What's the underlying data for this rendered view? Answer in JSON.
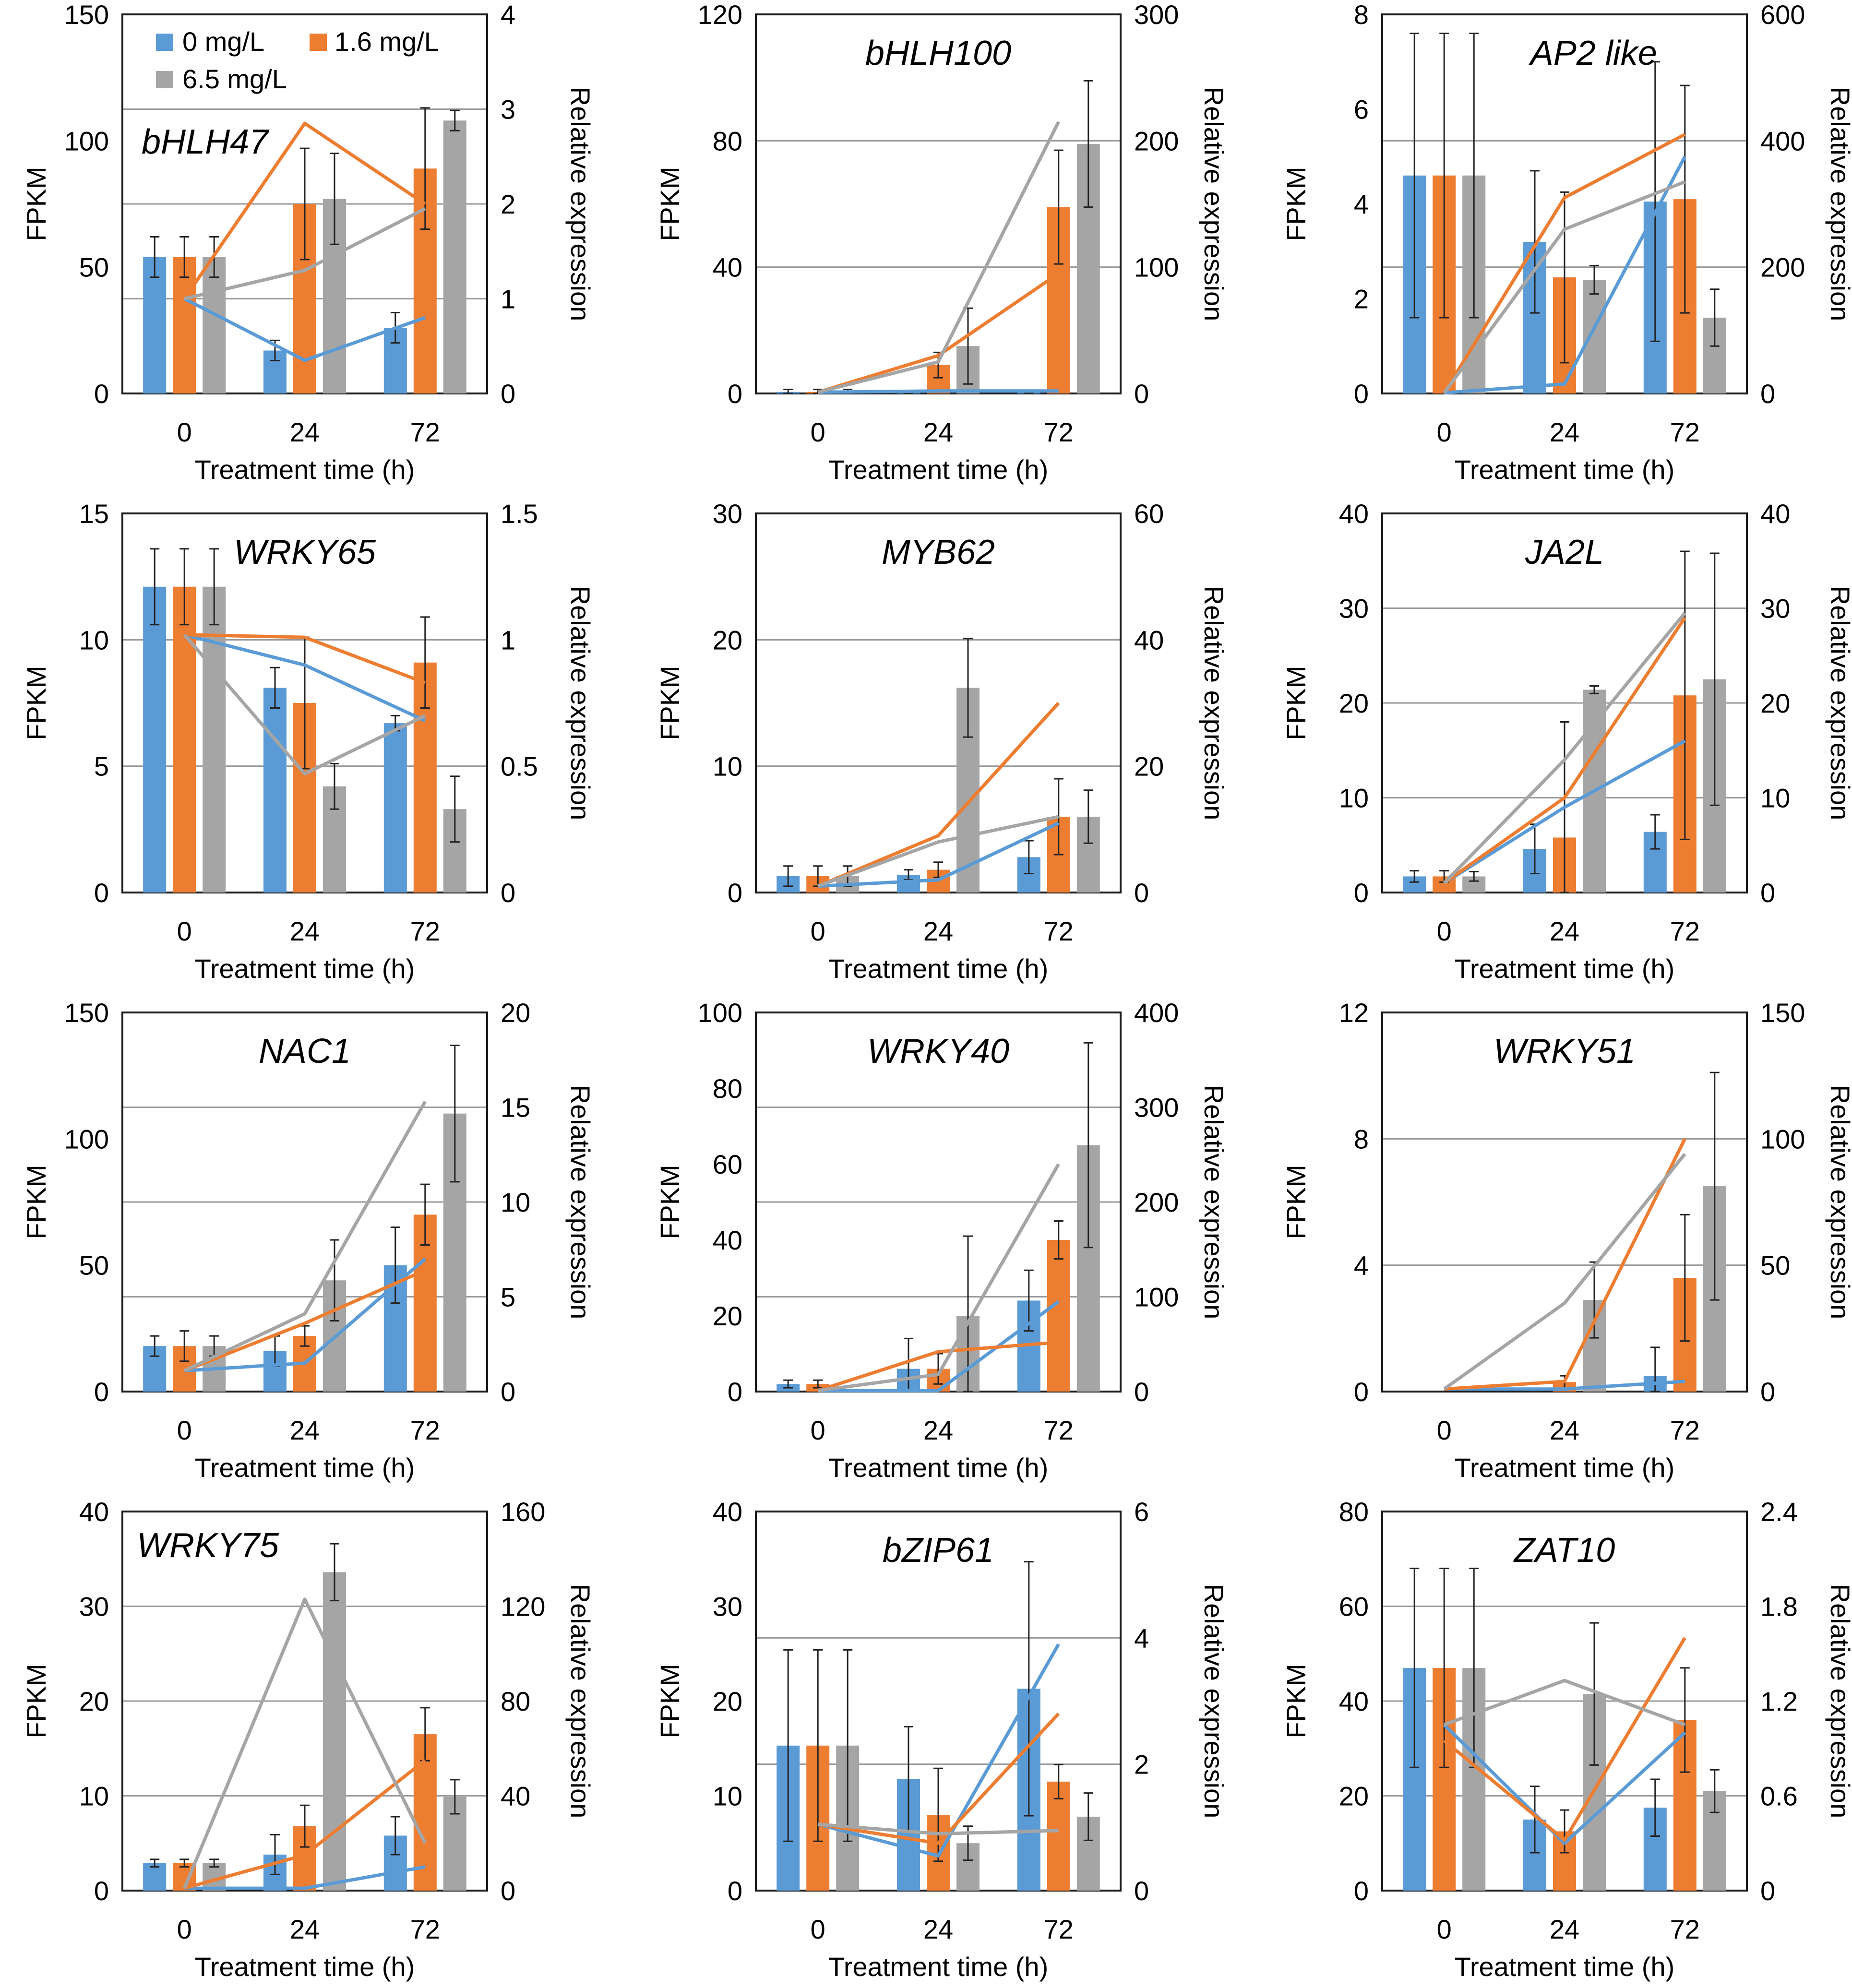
{
  "colors": {
    "blue": "#5b9bd5",
    "orange": "#ed7d31",
    "gray": "#a5a5a5",
    "grid": "#9a9a9a",
    "error_bar": "#222222"
  },
  "legend": {
    "entries": [
      "0 mg/L",
      "1.6 mg/L",
      "6.5 mg/L"
    ]
  },
  "chart_data": [
    {
      "type": "bar+line",
      "title": "bHLH47",
      "categories": [
        "0",
        "24",
        "72"
      ],
      "xlabel": "Treatment time (h)",
      "ylabel": "FPKM",
      "y2label": "Relative expression",
      "ylim": [
        0,
        150
      ],
      "yticks": [
        "0",
        "50",
        "100",
        "150"
      ],
      "y2lim": [
        0,
        4
      ],
      "y2ticks": [
        "0",
        "1",
        "2",
        "3",
        "4"
      ],
      "bar_series": [
        {
          "name": "0 mg/L",
          "values": [
            54,
            17,
            26
          ],
          "errors": [
            8,
            4,
            6
          ]
        },
        {
          "name": "1.6 mg/L",
          "values": [
            54,
            75,
            89
          ],
          "errors": [
            8,
            22,
            24
          ]
        },
        {
          "name": "6.5 mg/L",
          "values": [
            54,
            77,
            108
          ],
          "errors": [
            8,
            18,
            4
          ]
        }
      ],
      "line_series": [
        {
          "name": "0 mg/L",
          "values": [
            1.0,
            0.35,
            0.8
          ]
        },
        {
          "name": "1.6 mg/L",
          "values": [
            1.0,
            2.85,
            2.0
          ]
        },
        {
          "name": "6.5 mg/L",
          "values": [
            1.0,
            1.3,
            1.95
          ]
        }
      ]
    },
    {
      "type": "bar+line",
      "title": "bHLH100",
      "categories": [
        "0",
        "24",
        "72"
      ],
      "xlabel": "Treatment time (h)",
      "ylabel": "FPKM",
      "y2label": "Relative expression",
      "ylim": [
        0,
        120
      ],
      "yticks": [
        "0",
        "40",
        "80",
        "120"
      ],
      "y2lim": [
        0,
        300
      ],
      "y2ticks": [
        "0",
        "100",
        "200",
        "300"
      ],
      "bar_series": [
        {
          "name": "0 mg/L",
          "values": [
            0.5,
            0.3,
            0.3
          ],
          "errors": [
            0.8,
            0.3,
            0.3
          ]
        },
        {
          "name": "1.6 mg/L",
          "values": [
            0.5,
            9,
            59
          ],
          "errors": [
            0.8,
            4,
            18
          ]
        },
        {
          "name": "6.5 mg/L",
          "values": [
            0.5,
            15,
            79
          ],
          "errors": [
            0.8,
            12,
            20
          ]
        }
      ],
      "line_series": [
        {
          "name": "0 mg/L",
          "values": [
            1,
            2,
            2
          ]
        },
        {
          "name": "1.6 mg/L",
          "values": [
            1,
            30,
            95
          ]
        },
        {
          "name": "6.5 mg/L",
          "values": [
            1,
            25,
            215
          ]
        }
      ]
    },
    {
      "type": "bar+line",
      "title": "AP2 like",
      "categories": [
        "0",
        "24",
        "72"
      ],
      "xlabel": "Treatment time (h)",
      "ylabel": "FPKM",
      "y2label": "Relative expression",
      "ylim": [
        0,
        8
      ],
      "yticks": [
        "0",
        "2",
        "4",
        "6",
        "8"
      ],
      "y2lim": [
        0,
        600
      ],
      "y2ticks": [
        "0",
        "200",
        "400",
        "600"
      ],
      "bar_series": [
        {
          "name": "0 mg/L",
          "values": [
            4.6,
            3.2,
            4.05
          ],
          "errors": [
            3.0,
            1.5,
            2.95
          ]
        },
        {
          "name": "1.6 mg/L",
          "values": [
            4.6,
            2.45,
            4.1
          ],
          "errors": [
            3.0,
            1.8,
            2.4
          ]
        },
        {
          "name": "6.5 mg/L",
          "values": [
            4.6,
            2.4,
            1.6
          ],
          "errors": [
            3.0,
            0.3,
            0.6
          ]
        }
      ],
      "line_series": [
        {
          "name": "0 mg/L",
          "values": [
            1,
            15,
            375
          ]
        },
        {
          "name": "1.6 mg/L",
          "values": [
            1,
            310,
            410
          ]
        },
        {
          "name": "6.5 mg/L",
          "values": [
            1,
            260,
            335
          ]
        }
      ]
    },
    {
      "type": "bar+line",
      "title": "WRKY65",
      "categories": [
        "0",
        "24",
        "72"
      ],
      "xlabel": "Treatment time (h)",
      "ylabel": "FPKM",
      "y2label": "Relative expression",
      "ylim": [
        0,
        15
      ],
      "yticks": [
        "0",
        "5",
        "10",
        "15"
      ],
      "y2lim": [
        0,
        1.5
      ],
      "y2ticks": [
        "0",
        "0.5",
        "1",
        "1.5"
      ],
      "bar_series": [
        {
          "name": "0 mg/L",
          "values": [
            12.1,
            8.1,
            6.7
          ],
          "errors": [
            1.5,
            0.8,
            0.3
          ]
        },
        {
          "name": "1.6 mg/L",
          "values": [
            12.1,
            7.5,
            9.1
          ],
          "errors": [
            1.5,
            2.6,
            1.8
          ]
        },
        {
          "name": "6.5 mg/L",
          "values": [
            12.1,
            4.2,
            3.3
          ],
          "errors": [
            1.5,
            0.9,
            1.3
          ]
        }
      ],
      "line_series": [
        {
          "name": "0 mg/L",
          "values": [
            1.02,
            0.9,
            0.68
          ]
        },
        {
          "name": "1.6 mg/L",
          "values": [
            1.02,
            1.01,
            0.83
          ]
        },
        {
          "name": "6.5 mg/L",
          "values": [
            1.02,
            0.47,
            0.7
          ]
        }
      ]
    },
    {
      "type": "bar+line",
      "title": "MYB62",
      "categories": [
        "0",
        "24",
        "72"
      ],
      "xlabel": "Treatment time (h)",
      "ylabel": "FPKM",
      "y2label": "Relative expression",
      "ylim": [
        0,
        30
      ],
      "yticks": [
        "0",
        "10",
        "20",
        "30"
      ],
      "y2lim": [
        0,
        60
      ],
      "y2ticks": [
        "0",
        "20",
        "40",
        "60"
      ],
      "bar_series": [
        {
          "name": "0 mg/L",
          "values": [
            1.3,
            1.4,
            2.8
          ],
          "errors": [
            0.8,
            0.4,
            1.3
          ]
        },
        {
          "name": "1.6 mg/L",
          "values": [
            1.3,
            1.8,
            6.0
          ],
          "errors": [
            0.8,
            0.6,
            3.0
          ]
        },
        {
          "name": "6.5 mg/L",
          "values": [
            1.3,
            16.2,
            6.0
          ],
          "errors": [
            0.8,
            3.9,
            2.1
          ]
        }
      ],
      "line_series": [
        {
          "name": "0 mg/L",
          "values": [
            1,
            2,
            11
          ]
        },
        {
          "name": "1.6 mg/L",
          "values": [
            1,
            9,
            30
          ]
        },
        {
          "name": "6.5 mg/L",
          "values": [
            1,
            8,
            12
          ]
        }
      ]
    },
    {
      "type": "bar+line",
      "title": "JA2L",
      "categories": [
        "0",
        "24",
        "72"
      ],
      "xlabel": "Treatment time (h)",
      "ylabel": "FPKM",
      "y2label": "Relative expression",
      "ylim": [
        0,
        40
      ],
      "yticks": [
        "0",
        "10",
        "20",
        "30",
        "40"
      ],
      "y2lim": [
        0,
        40
      ],
      "y2ticks": [
        "0",
        "10",
        "20",
        "30",
        "40"
      ],
      "bar_series": [
        {
          "name": "0 mg/L",
          "values": [
            1.7,
            4.6,
            6.4
          ],
          "errors": [
            0.6,
            2.6,
            1.8
          ]
        },
        {
          "name": "1.6 mg/L",
          "values": [
            1.7,
            5.8,
            20.8
          ],
          "errors": [
            0.6,
            12.2,
            15.2
          ]
        },
        {
          "name": "6.5 mg/L",
          "values": [
            1.7,
            21.4,
            22.5
          ],
          "errors": [
            0.5,
            0.4,
            13.3
          ]
        }
      ],
      "line_series": [
        {
          "name": "0 mg/L",
          "values": [
            1,
            9,
            16
          ]
        },
        {
          "name": "1.6 mg/L",
          "values": [
            1,
            10,
            29
          ]
        },
        {
          "name": "6.5 mg/L",
          "values": [
            1,
            14,
            29.5
          ]
        }
      ]
    },
    {
      "type": "bar+line",
      "title": "NAC1",
      "categories": [
        "0",
        "24",
        "72"
      ],
      "xlabel": "Treatment time (h)",
      "ylabel": "FPKM",
      "y2label": "Relative expression",
      "ylim": [
        0,
        150
      ],
      "yticks": [
        "0",
        "50",
        "100",
        "150"
      ],
      "y2lim": [
        0,
        20
      ],
      "y2ticks": [
        "0",
        "5",
        "10",
        "15",
        "20"
      ],
      "bar_series": [
        {
          "name": "0 mg/L",
          "values": [
            18,
            16,
            50
          ],
          "errors": [
            4,
            6,
            15
          ]
        },
        {
          "name": "1.6 mg/L",
          "values": [
            18,
            22,
            70
          ],
          "errors": [
            6,
            4,
            12
          ]
        },
        {
          "name": "6.5 mg/L",
          "values": [
            18,
            44,
            110
          ],
          "errors": [
            4,
            16,
            27
          ]
        }
      ],
      "line_series": [
        {
          "name": "0 mg/L",
          "values": [
            1.1,
            1.5,
            7.0
          ]
        },
        {
          "name": "1.6 mg/L",
          "values": [
            1.1,
            3.6,
            6.4
          ]
        },
        {
          "name": "6.5 mg/L",
          "values": [
            1.1,
            4.1,
            15.3
          ]
        }
      ]
    },
    {
      "type": "bar+line",
      "title": "WRKY40",
      "categories": [
        "0",
        "24",
        "72"
      ],
      "xlabel": "Treatment time (h)",
      "ylabel": "FPKM",
      "y2label": "Relative expression",
      "ylim": [
        0,
        100
      ],
      "yticks": [
        "0",
        "20",
        "40",
        "60",
        "80",
        "100"
      ],
      "y2lim": [
        0,
        400
      ],
      "y2ticks": [
        "0",
        "100",
        "200",
        "300",
        "400"
      ],
      "bar_series": [
        {
          "name": "0 mg/L",
          "values": [
            2,
            6,
            24
          ],
          "errors": [
            1,
            8,
            8
          ]
        },
        {
          "name": "1.6 mg/L",
          "values": [
            2,
            6,
            40
          ],
          "errors": [
            1,
            4,
            5
          ]
        },
        {
          "name": "6.5 mg/L",
          "values": [
            0,
            20,
            65
          ],
          "errors": [
            0,
            21,
            27
          ]
        }
      ],
      "line_series": [
        {
          "name": "0 mg/L",
          "values": [
            1,
            1,
            95
          ]
        },
        {
          "name": "1.6 mg/L",
          "values": [
            1,
            42,
            52
          ]
        },
        {
          "name": "6.5 mg/L",
          "values": [
            1,
            18,
            240
          ]
        }
      ]
    },
    {
      "type": "bar+line",
      "title": "WRKY51",
      "categories": [
        "0",
        "24",
        "72"
      ],
      "xlabel": "Treatment time (h)",
      "ylabel": "FPKM",
      "y2label": "Relative expression",
      "ylim": [
        0,
        12
      ],
      "yticks": [
        "0",
        "4",
        "8",
        "12"
      ],
      "y2lim": [
        0,
        150
      ],
      "y2ticks": [
        "0",
        "50",
        "100",
        "150"
      ],
      "bar_series": [
        {
          "name": "0 mg/L",
          "values": [
            0,
            0,
            0.5
          ],
          "errors": [
            0,
            0.1,
            0.9
          ]
        },
        {
          "name": "1.6 mg/L",
          "values": [
            0,
            0.3,
            3.6
          ],
          "errors": [
            0,
            0.2,
            2.0
          ]
        },
        {
          "name": "6.5 mg/L",
          "values": [
            0,
            2.9,
            6.5
          ],
          "errors": [
            0,
            1.2,
            3.6
          ]
        }
      ],
      "line_series": [
        {
          "name": "0 mg/L",
          "values": [
            1,
            1,
            4
          ]
        },
        {
          "name": "1.6 mg/L",
          "values": [
            1,
            4,
            100
          ]
        },
        {
          "name": "6.5 mg/L",
          "values": [
            1,
            35,
            94
          ]
        }
      ]
    },
    {
      "type": "bar+line",
      "title": "WRKY75",
      "categories": [
        "0",
        "24",
        "72"
      ],
      "xlabel": "Treatment time (h)",
      "ylabel": "FPKM",
      "y2label": "Relative expression",
      "ylim": [
        0,
        40
      ],
      "yticks": [
        "0",
        "10",
        "20",
        "30",
        "40"
      ],
      "y2lim": [
        0,
        160
      ],
      "y2ticks": [
        "0",
        "40",
        "80",
        "120",
        "160"
      ],
      "bar_series": [
        {
          "name": "0 mg/L",
          "values": [
            2.9,
            3.8,
            5.8
          ],
          "errors": [
            0.4,
            2.1,
            2.0
          ]
        },
        {
          "name": "1.6 mg/L",
          "values": [
            2.9,
            6.8,
            16.5
          ],
          "errors": [
            0.4,
            2.2,
            2.8
          ]
        },
        {
          "name": "6.5 mg/L",
          "values": [
            2.9,
            33.6,
            9.9
          ],
          "errors": [
            0.4,
            3.0,
            1.8
          ]
        }
      ],
      "line_series": [
        {
          "name": "0 mg/L",
          "values": [
            1,
            1,
            10
          ]
        },
        {
          "name": "1.6 mg/L",
          "values": [
            1,
            15,
            55
          ]
        },
        {
          "name": "6.5 mg/L",
          "values": [
            1,
            123,
            20
          ]
        }
      ]
    },
    {
      "type": "bar+line",
      "title": "bZIP61",
      "categories": [
        "0",
        "24",
        "72"
      ],
      "xlabel": "Treatment time (h)",
      "ylabel": "FPKM",
      "y2label": "Relative expression",
      "ylim": [
        0,
        40
      ],
      "yticks": [
        "0",
        "10",
        "20",
        "30",
        "40"
      ],
      "y2lim": [
        0,
        6
      ],
      "y2ticks": [
        "0",
        "2",
        "4",
        "6"
      ],
      "bar_series": [
        {
          "name": "0 mg/L",
          "values": [
            15.3,
            11.8,
            21.3
          ],
          "errors": [
            10.1,
            5.5,
            13.4
          ]
        },
        {
          "name": "1.6 mg/L",
          "values": [
            15.3,
            8.0,
            11.5
          ],
          "errors": [
            10.1,
            4.9,
            1.8
          ]
        },
        {
          "name": "6.5 mg/L",
          "values": [
            15.3,
            5.0,
            7.8
          ],
          "errors": [
            10.1,
            1.8,
            2.5
          ]
        }
      ],
      "line_series": [
        {
          "name": "0 mg/L",
          "values": [
            1.05,
            0.55,
            3.9
          ]
        },
        {
          "name": "1.6 mg/L",
          "values": [
            1.05,
            0.75,
            2.8
          ]
        },
        {
          "name": "6.5 mg/L",
          "values": [
            1.05,
            0.9,
            0.95
          ]
        }
      ]
    },
    {
      "type": "bar+line",
      "title": "ZAT10",
      "categories": [
        "0",
        "24",
        "72"
      ],
      "xlabel": "Treatment time (h)",
      "ylabel": "FPKM",
      "y2label": "Relative expression",
      "ylim": [
        0,
        80
      ],
      "yticks": [
        "0",
        "20",
        "40",
        "60",
        "80"
      ],
      "y2lim": [
        0,
        2.4
      ],
      "y2ticks": [
        "0",
        "0.6",
        "1.2",
        "1.8",
        "2.4"
      ],
      "bar_series": [
        {
          "name": "0 mg/L",
          "values": [
            47,
            15,
            17.5
          ],
          "errors": [
            21,
            7,
            6
          ]
        },
        {
          "name": "1.6 mg/L",
          "values": [
            47,
            12.5,
            36
          ],
          "errors": [
            21,
            4.5,
            11
          ]
        },
        {
          "name": "6.5 mg/L",
          "values": [
            47,
            41.5,
            21
          ],
          "errors": [
            21,
            15,
            4.5
          ]
        }
      ],
      "line_series": [
        {
          "name": "0 mg/L",
          "values": [
            1.05,
            0.3,
            1.0
          ]
        },
        {
          "name": "1.6 mg/L",
          "values": [
            0.95,
            0.32,
            1.6
          ]
        },
        {
          "name": "6.5 mg/L",
          "values": [
            1.05,
            1.33,
            1.05
          ]
        }
      ]
    }
  ]
}
